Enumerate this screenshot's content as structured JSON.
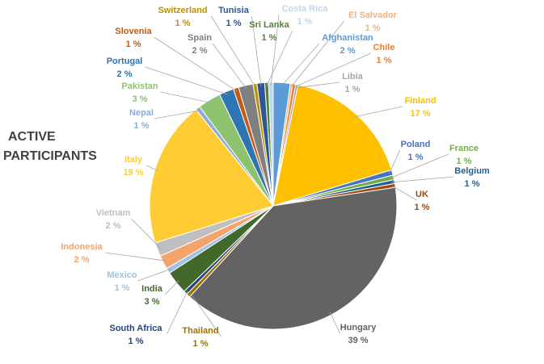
{
  "chart_data": {
    "type": "pie",
    "title": "ACTIVE PARTICIPANTS",
    "slices": [
      {
        "label": "Afghanistan",
        "pct_label": "2 %",
        "value": 2.2,
        "color": "#5B9BD5"
      },
      {
        "label": "El Salvador",
        "pct_label": "1 %",
        "value": 0.3,
        "color": "#F4B183"
      },
      {
        "label": "Chile",
        "pct_label": "1 %",
        "value": 0.4,
        "color": "#ED7D31"
      },
      {
        "label": "Libia",
        "pct_label": "1 %",
        "value": 0.3,
        "color": "#A5A5A5"
      },
      {
        "label": "Finland",
        "pct_label": "17 %",
        "value": 17,
        "color": "#FFC000"
      },
      {
        "label": "Poland",
        "pct_label": "1 %",
        "value": 0.7,
        "color": "#4472C4"
      },
      {
        "label": "France",
        "pct_label": "1 %",
        "value": 0.6,
        "color": "#70AD47"
      },
      {
        "label": "Belgium",
        "pct_label": "1 %",
        "value": 0.5,
        "color": "#255E91"
      },
      {
        "label": "UK",
        "pct_label": "1 %",
        "value": 0.5,
        "color": "#9E480E"
      },
      {
        "label": "Hungary",
        "pct_label": "39 %",
        "value": 39,
        "color": "#636363"
      },
      {
        "label": "Thailand",
        "pct_label": "1 %",
        "value": 0.5,
        "color": "#997300"
      },
      {
        "label": "South Africa",
        "pct_label": "1 %",
        "value": 0.5,
        "color": "#264478"
      },
      {
        "label": "India",
        "pct_label": "3 %",
        "value": 3,
        "color": "#43682B"
      },
      {
        "label": "Mexico",
        "pct_label": "1 %",
        "value": 0.7,
        "color": "#9DC3E6"
      },
      {
        "label": "Indonesia",
        "pct_label": "2 %",
        "value": 1.8,
        "color": "#F4A36B"
      },
      {
        "label": "Vietnam",
        "pct_label": "2 %",
        "value": 1.8,
        "color": "#BFBFBF"
      },
      {
        "label": "Italy",
        "pct_label": "19 %",
        "value": 19,
        "color": "#FFCD33"
      },
      {
        "label": "Nepal",
        "pct_label": "1 %",
        "value": 0.6,
        "color": "#8FAADC"
      },
      {
        "label": "Pakistan",
        "pct_label": "3 %",
        "value": 3,
        "color": "#8DC26F"
      },
      {
        "label": "Portugal",
        "pct_label": "2 %",
        "value": 1.9,
        "color": "#2E75B6"
      },
      {
        "label": "Slovenia",
        "pct_label": "1 %",
        "value": 0.7,
        "color": "#C55A11"
      },
      {
        "label": "Spain",
        "pct_label": "2 %",
        "value": 1.9,
        "color": "#7F7F7F"
      },
      {
        "label": "Switzerland",
        "pct_label": "1 %",
        "value": 0.5,
        "color": "#BF9000"
      },
      {
        "label": "Tunisia",
        "pct_label": "1 %",
        "value": 1.0,
        "color": "#2F5597"
      },
      {
        "label": "Sri Lanka",
        "pct_label": "1 %",
        "value": 0.5,
        "color": "#548235"
      },
      {
        "label": "Costa Rica",
        "pct_label": "1 %",
        "value": 0.6,
        "color": "#BDD7EE"
      }
    ],
    "legend": "none"
  }
}
